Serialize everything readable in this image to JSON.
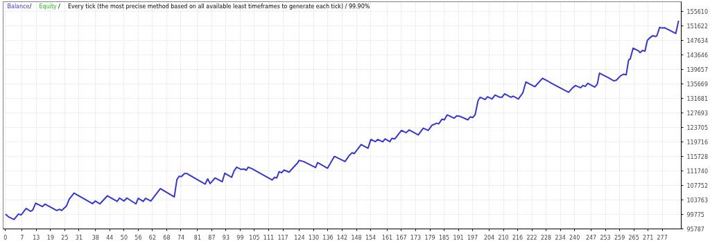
{
  "chart_data": {
    "type": "line",
    "title": "Every tick (the most precise method based on all available least timeframes to generate each tick) / 99.90%",
    "x": [
      0,
      1.2,
      3.6,
      5.5,
      6.6,
      8.7,
      10.6,
      11.5,
      12.7,
      15.6,
      16.7,
      21.6,
      22.8,
      23.7,
      25.7,
      26.9,
      28.9,
      36.7,
      37.9,
      39.8,
      43,
      47.1,
      48.1,
      50,
      51.2,
      55,
      56,
      58.1,
      59.1,
      61.3,
      65.3,
      71.2,
      72.3,
      73.3,
      74.2,
      75.5,
      76.4,
      84.2,
      85.3,
      86.3,
      88.4,
      91.4,
      92.5,
      95.4,
      96.4,
      97.5,
      99.4,
      100.7,
      101.5,
      102.4,
      104,
      112.5,
      113.5,
      114.4,
      115.4,
      116.4,
      117.5,
      119.6,
      123.3,
      123.8,
      125.7,
      130.8,
      131.6,
      135.8,
      138.7,
      143.2,
      145,
      146.2,
      147.1,
      150,
      152.9,
      154.1,
      156,
      157,
      159.1,
      160.1,
      162.1,
      163,
      164.2,
      167,
      169,
      170.2,
      174.1,
      176.2,
      178.3,
      180,
      181,
      181.8,
      182.7,
      184.1,
      185.1,
      186.3,
      189.2,
      190.3,
      191.8,
      195,
      196.1,
      197.1,
      198.1,
      199.3,
      200.2,
      202.3,
      203.3,
      205.2,
      206.5,
      208.4,
      209.4,
      210.5,
      213.2,
      214.2,
      216.3,
      218.2,
      219.5,
      223.3,
      226.5,
      229,
      231.5,
      237.5,
      239.2,
      240.4,
      242.6,
      243.5,
      244.5,
      245.6,
      248.5,
      249.6,
      250.5,
      254.6,
      256.5,
      257.6,
      259.4,
      260.6,
      261.8,
      262.8,
      263.5,
      264.7,
      267.1,
      267.6,
      268.7,
      269.7,
      270.7,
      271.9,
      273,
      274.1,
      274.7,
      275.9,
      276.9,
      278.1,
      282.7,
      283.9
    ],
    "series": [
      {
        "name": "Balance",
        "color": "#3535d0",
        "values": [
          99870,
          99130,
          98390,
          99880,
          99630,
          101420,
          100620,
          100990,
          102850,
          101920,
          102610,
          100860,
          101180,
          100860,
          102050,
          103960,
          105630,
          102720,
          103460,
          102660,
          104890,
          103350,
          104280,
          103460,
          104280,
          102660,
          104210,
          103350,
          104210,
          103460,
          106880,
          104580,
          109350,
          110280,
          110150,
          111020,
          111020,
          108110,
          109550,
          108240,
          109780,
          108740,
          111080,
          109970,
          111710,
          112750,
          112140,
          112260,
          111900,
          112750,
          112320,
          109220,
          109970,
          109780,
          111520,
          111210,
          111950,
          111390,
          114000,
          114610,
          114310,
          112640,
          114000,
          112450,
          115720,
          114310,
          115980,
          116730,
          116470,
          118960,
          117950,
          120370,
          119760,
          120370,
          119700,
          120500,
          119760,
          120680,
          120500,
          122860,
          122230,
          122970,
          121610,
          123470,
          122860,
          124350,
          124530,
          124830,
          124640,
          125940,
          125760,
          127130,
          126200,
          126870,
          126690,
          125760,
          126580,
          126390,
          127190,
          131030,
          131960,
          131340,
          132090,
          131460,
          132580,
          131960,
          131960,
          132890,
          131960,
          132260,
          131460,
          133190,
          136160,
          134860,
          137170,
          136290,
          135360,
          133320,
          134560,
          135180,
          134560,
          135180,
          134940,
          135790,
          134750,
          135550,
          138580,
          137220,
          136480,
          136610,
          137830,
          138280,
          138150,
          142180,
          142480,
          145450,
          144650,
          144220,
          144840,
          144600,
          147570,
          148370,
          148870,
          148680,
          148800,
          151160,
          150970,
          151020,
          149480,
          153010
        ]
      },
      {
        "name": "Equity",
        "color": "#20c020",
        "values": [
          null,
          null,
          null,
          null,
          null,
          null,
          null,
          null,
          null,
          null,
          null,
          null,
          null,
          null,
          null,
          null,
          null,
          null,
          null,
          null,
          null,
          null,
          null,
          null,
          null,
          null,
          null,
          null,
          null,
          null,
          null,
          null,
          null,
          null,
          null,
          null,
          null,
          null,
          null,
          null,
          null,
          null,
          null,
          null,
          null,
          null,
          null,
          null,
          null,
          null,
          null,
          null,
          null,
          null,
          null,
          null,
          null,
          null,
          null,
          null,
          null,
          null,
          null,
          null,
          null,
          null,
          null,
          null,
          null,
          null,
          null,
          null,
          null,
          null,
          null,
          null,
          null,
          null,
          null,
          null,
          null,
          null,
          null,
          null,
          null,
          null,
          null,
          null,
          null,
          null,
          null,
          null,
          null,
          null,
          null,
          null,
          null,
          null,
          null,
          null,
          null,
          null,
          null,
          null,
          null,
          null,
          null,
          null,
          null,
          null,
          null,
          null,
          null,
          null,
          null,
          null,
          null,
          null,
          null,
          null,
          null,
          null,
          null,
          null,
          null,
          null,
          null,
          null,
          null,
          null,
          null,
          null,
          null,
          null,
          null,
          null,
          null,
          null,
          null,
          null,
          null,
          null,
          null,
          null,
          null,
          null,
          null,
          null,
          null,
          null
        ]
      }
    ],
    "xlim": [
      -1,
      285
    ],
    "ylim": [
      95787,
      158200
    ],
    "xticks": [
      0,
      7,
      13,
      19,
      25,
      31,
      38,
      44,
      50,
      56,
      62,
      68,
      74,
      81,
      87,
      93,
      99,
      105,
      111,
      117,
      124,
      130,
      136,
      142,
      148,
      154,
      161,
      167,
      173,
      179,
      185,
      191,
      197,
      204,
      210,
      216,
      222,
      228,
      234,
      240,
      247,
      253,
      259,
      265,
      271,
      277
    ],
    "yticks": [
      95787,
      99775,
      103763,
      107752,
      111740,
      115728,
      119716,
      123705,
      127693,
      131681,
      135669,
      139657,
      143646,
      147634,
      151622,
      155610
    ],
    "grid": true,
    "annotations": [
      "/",
      "/"
    ],
    "legend": "top left"
  }
}
